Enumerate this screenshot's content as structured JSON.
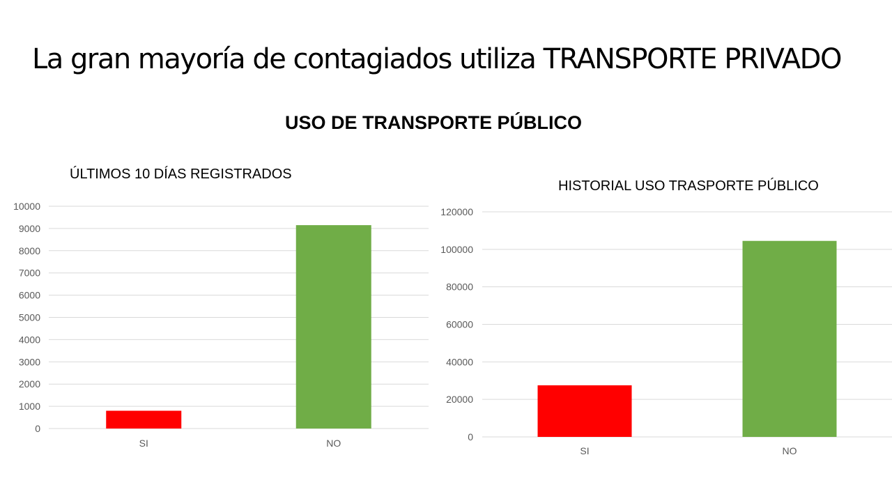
{
  "slide": {
    "title": "La gran mayoría de contagiados utiliza TRANSPORTE PRIVADO",
    "subtitle": "USO DE TRANSPORTE PÚBLICO"
  },
  "chart_data": [
    {
      "type": "bar",
      "title": "ÚLTIMOS 10 DÍAS REGISTRADOS",
      "categories": [
        "SI",
        "NO"
      ],
      "values": [
        800,
        9150
      ],
      "colors": [
        "#ff0000",
        "#70ad47"
      ],
      "ylim": [
        0,
        10000
      ],
      "yticks": [
        0,
        1000,
        2000,
        3000,
        4000,
        5000,
        6000,
        7000,
        8000,
        9000,
        10000
      ],
      "grid": true,
      "legend": "none"
    },
    {
      "type": "bar",
      "title": "HISTORIAL USO TRASPORTE PÚBLICO",
      "categories": [
        "SI",
        "NO"
      ],
      "values": [
        27500,
        104500
      ],
      "colors": [
        "#ff0000",
        "#70ad47"
      ],
      "ylim": [
        0,
        120000
      ],
      "yticks": [
        0,
        20000,
        40000,
        60000,
        80000,
        100000,
        120000
      ],
      "grid": true,
      "legend": "none"
    }
  ]
}
